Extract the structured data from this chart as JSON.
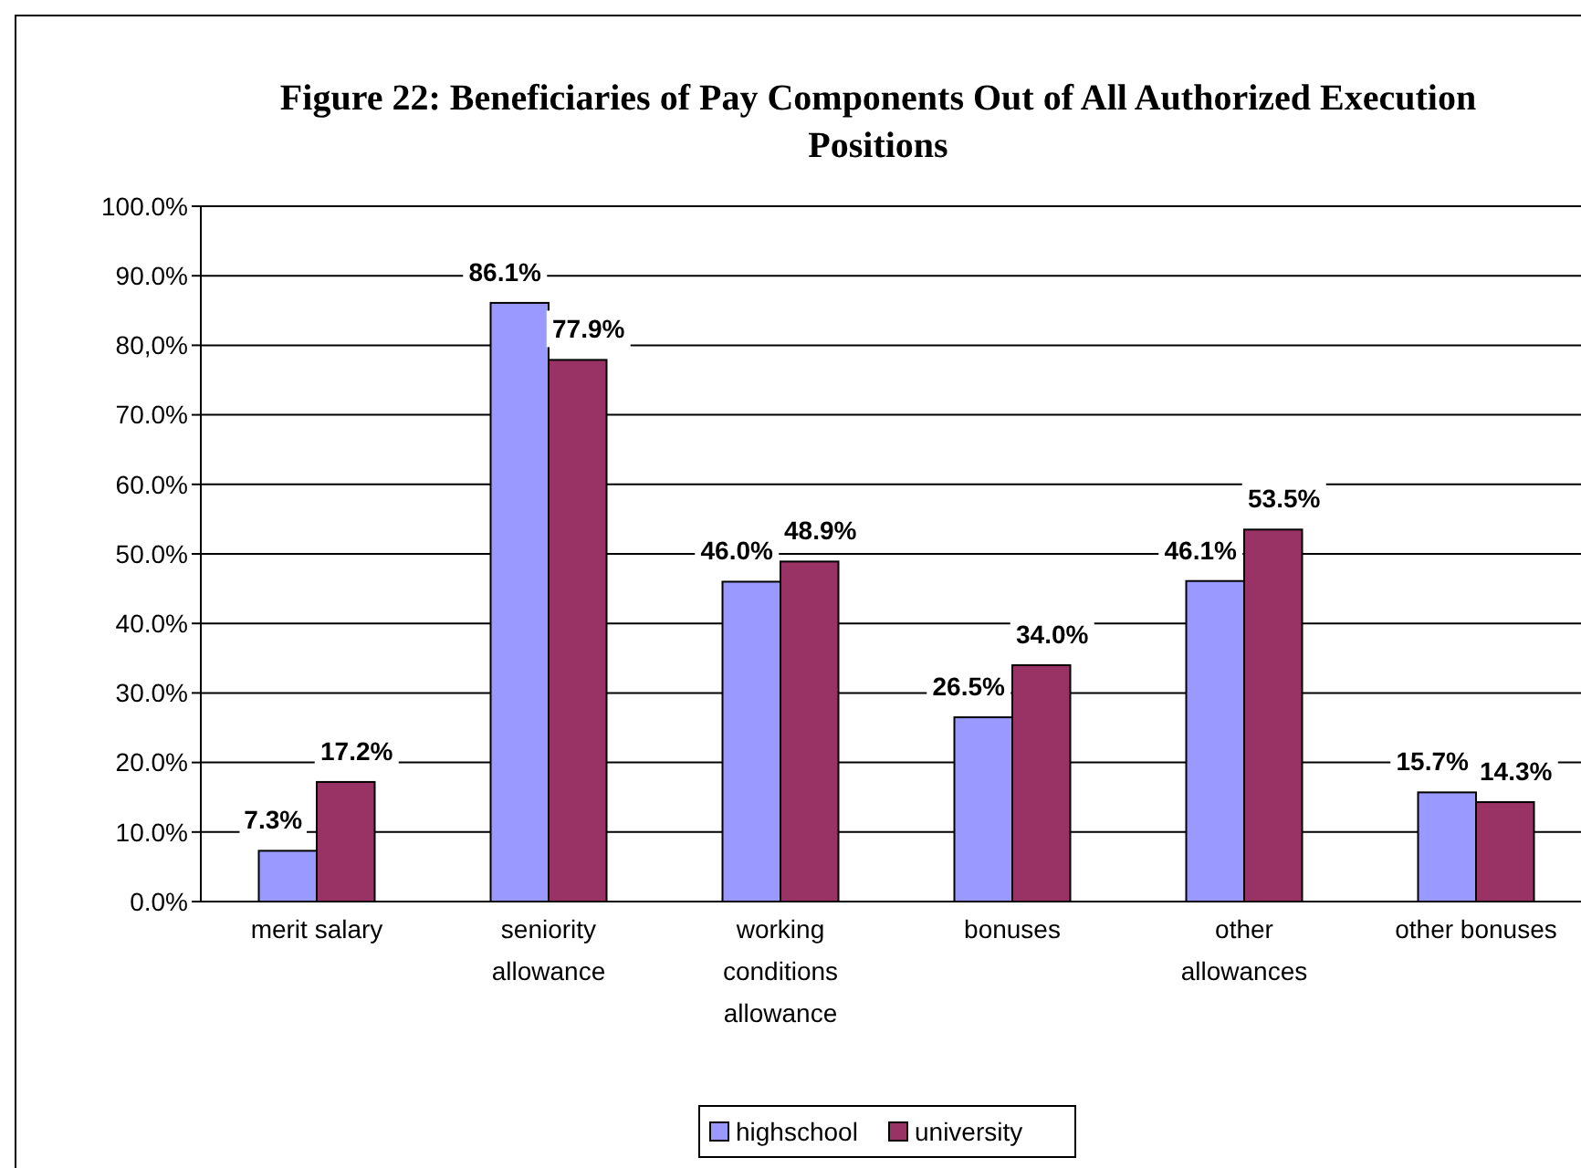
{
  "chart_data": {
    "type": "bar",
    "title": "Figure 22: Beneficiaries of Pay Components Out of All Authorized Execution Positions",
    "categories": [
      "merit salary",
      "seniority\nallowance",
      "working\nconditions\nallowance",
      "bonuses",
      "other\nallowances",
      "other bonuses"
    ],
    "series": [
      {
        "name": "highschool",
        "color": "#9999ff",
        "values": [
          7.3,
          86.1,
          46.0,
          26.5,
          46.1,
          15.7
        ],
        "value_labels": [
          "7.3%",
          "86.1%",
          "46.0%",
          "26.5%",
          "46.1%",
          "15.7%"
        ]
      },
      {
        "name": "university",
        "color": "#993366",
        "values": [
          17.2,
          77.9,
          48.9,
          34.0,
          53.5,
          14.3
        ],
        "value_labels": [
          "17.2%",
          "77.9%",
          "48.9%",
          "34.0%",
          "53.5%",
          "14.3%"
        ]
      }
    ],
    "ylim": [
      0,
      100
    ],
    "yticks": [
      {
        "value": 0,
        "label": "0.0%"
      },
      {
        "value": 10,
        "label": "10.0%"
      },
      {
        "value": 20,
        "label": "20.0%"
      },
      {
        "value": 30,
        "label": "30.0%"
      },
      {
        "value": 40,
        "label": "40.0%"
      },
      {
        "value": 50,
        "label": "50.0%"
      },
      {
        "value": 60,
        "label": "60.0%"
      },
      {
        "value": 70,
        "label": "70.0%"
      },
      {
        "value": 80,
        "label": "80,0%"
      },
      {
        "value": 90,
        "label": "90.0%"
      },
      {
        "value": 100,
        "label": "100.0%"
      }
    ],
    "grid": "y",
    "legend": "bottom"
  }
}
